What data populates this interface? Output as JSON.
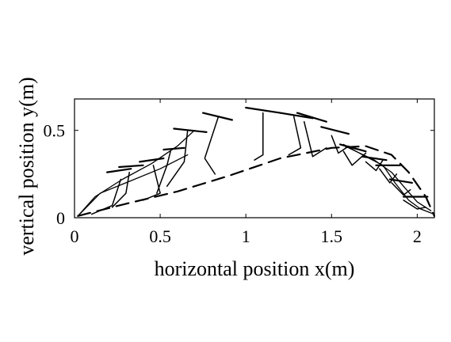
{
  "chart_data": {
    "type": "line",
    "title": "",
    "xlabel": "horizontal position x(m)",
    "ylabel": "vertical position y(m)",
    "xlim": [
      0,
      2.1
    ],
    "ylim": [
      0,
      0.68
    ],
    "grid": false,
    "legend": "none",
    "xticks": [
      {
        "value": 0,
        "label": "0"
      },
      {
        "value": 0.5,
        "label": "0.5"
      },
      {
        "value": 1,
        "label": "1"
      },
      {
        "value": 1.5,
        "label": "1.5"
      },
      {
        "value": 2,
        "label": "2"
      }
    ],
    "yticks": [
      {
        "value": 0,
        "label": "0"
      },
      {
        "value": 0.5,
        "label": "0.5"
      }
    ],
    "colors": {
      "line": "#000000",
      "frame": "#000000",
      "background": "#ffffff"
    },
    "series": [
      {
        "style": "dashed",
        "x": [
          0.02,
          0.3,
          0.6,
          0.9,
          1.2,
          1.5,
          1.7,
          1.85,
          1.95,
          2.05,
          2.1
        ],
        "y": [
          0.01,
          0.08,
          0.15,
          0.24,
          0.34,
          0.4,
          0.41,
          0.36,
          0.26,
          0.12,
          0.01
        ]
      },
      {
        "style": "solid",
        "x": [
          0.02,
          0.12,
          0.28,
          0.45,
          0.6,
          0.7
        ],
        "y": [
          0.01,
          0.12,
          0.22,
          0.31,
          0.41,
          0.5
        ]
      },
      {
        "style": "solid",
        "x": [
          0.02,
          0.15,
          0.3,
          0.5,
          0.66
        ],
        "y": [
          0.01,
          0.14,
          0.2,
          0.28,
          0.36
        ]
      },
      {
        "style": "solid",
        "x": [
          1.57,
          1.7,
          1.8,
          1.87,
          1.95,
          2.02,
          2.1
        ],
        "y": [
          0.42,
          0.35,
          0.3,
          0.2,
          0.1,
          0.05,
          0.02
        ]
      },
      {
        "style": "solid",
        "x": [
          1.6,
          1.75,
          1.85,
          1.92,
          2.0,
          2.08
        ],
        "y": [
          0.4,
          0.33,
          0.26,
          0.18,
          0.09,
          0.04
        ]
      }
    ],
    "stick_figures": [
      {
        "points": [
          [
            0.1,
            0.02
          ],
          [
            0.22,
            0.07
          ],
          [
            0.27,
            0.22
          ]
        ],
        "head": [
          [
            0.19,
            0.26
          ],
          [
            0.33,
            0.28
          ]
        ]
      },
      {
        "points": [
          [
            0.22,
            0.06
          ],
          [
            0.3,
            0.14
          ],
          [
            0.32,
            0.26
          ]
        ],
        "head": [
          [
            0.26,
            0.29
          ],
          [
            0.4,
            0.3
          ]
        ]
      },
      {
        "points": [
          [
            0.4,
            0.1
          ],
          [
            0.5,
            0.14
          ],
          [
            0.46,
            0.3
          ]
        ],
        "head": [
          [
            0.38,
            0.32
          ],
          [
            0.52,
            0.34
          ]
        ]
      },
      {
        "points": [
          [
            0.48,
            0.14
          ],
          [
            0.54,
            0.3
          ],
          [
            0.56,
            0.38
          ]
        ],
        "head": [
          [
            0.52,
            0.39
          ],
          [
            0.64,
            0.4
          ]
        ]
      },
      {
        "points": [
          [
            0.54,
            0.18
          ],
          [
            0.64,
            0.32
          ],
          [
            0.66,
            0.5
          ]
        ],
        "head": [
          [
            0.58,
            0.51
          ],
          [
            0.77,
            0.49
          ]
        ]
      },
      {
        "points": [
          [
            0.82,
            0.25
          ],
          [
            0.76,
            0.34
          ],
          [
            0.84,
            0.58
          ]
        ],
        "head": [
          [
            0.75,
            0.6
          ],
          [
            0.92,
            0.56
          ]
        ]
      },
      {
        "points": [
          [
            1.05,
            0.33
          ],
          [
            1.1,
            0.36
          ],
          [
            1.1,
            0.6
          ]
        ],
        "head": [
          [
            1.0,
            0.63
          ],
          [
            1.2,
            0.6
          ]
        ]
      },
      {
        "points": [
          [
            1.25,
            0.36
          ],
          [
            1.32,
            0.4
          ],
          [
            1.28,
            0.58
          ]
        ],
        "head": [
          [
            1.2,
            0.6
          ],
          [
            1.39,
            0.57
          ]
        ]
      },
      {
        "points": [
          [
            1.47,
            0.4
          ],
          [
            1.39,
            0.35
          ],
          [
            1.34,
            0.55
          ]
        ],
        "head": [
          [
            1.3,
            0.6
          ],
          [
            1.47,
            0.55
          ]
        ]
      },
      {
        "points": [
          [
            1.6,
            0.41
          ],
          [
            1.54,
            0.37
          ],
          [
            1.5,
            0.47
          ]
        ],
        "head": [
          [
            1.44,
            0.52
          ],
          [
            1.6,
            0.48
          ]
        ]
      },
      {
        "points": [
          [
            1.7,
            0.37
          ],
          [
            1.62,
            0.3
          ],
          [
            1.57,
            0.38
          ]
        ],
        "head": [
          [
            1.55,
            0.42
          ],
          [
            1.7,
            0.38
          ]
        ]
      },
      {
        "points": [
          [
            1.8,
            0.33
          ],
          [
            1.76,
            0.27
          ],
          [
            1.7,
            0.32
          ]
        ],
        "head": [
          [
            1.68,
            0.35
          ],
          [
            1.82,
            0.33
          ]
        ]
      },
      {
        "points": [
          [
            1.88,
            0.25
          ],
          [
            1.84,
            0.2
          ],
          [
            1.78,
            0.28
          ]
        ],
        "head": [
          [
            1.76,
            0.3
          ],
          [
            1.9,
            0.3
          ]
        ]
      },
      {
        "points": [
          [
            1.96,
            0.16
          ],
          [
            1.92,
            0.13
          ],
          [
            1.85,
            0.2
          ]
        ],
        "head": [
          [
            1.84,
            0.22
          ],
          [
            1.97,
            0.2
          ]
        ]
      },
      {
        "points": [
          [
            2.05,
            0.06
          ],
          [
            2.0,
            0.05
          ],
          [
            1.92,
            0.1
          ]
        ],
        "head": [
          [
            1.92,
            0.12
          ],
          [
            2.06,
            0.12
          ]
        ]
      }
    ]
  }
}
